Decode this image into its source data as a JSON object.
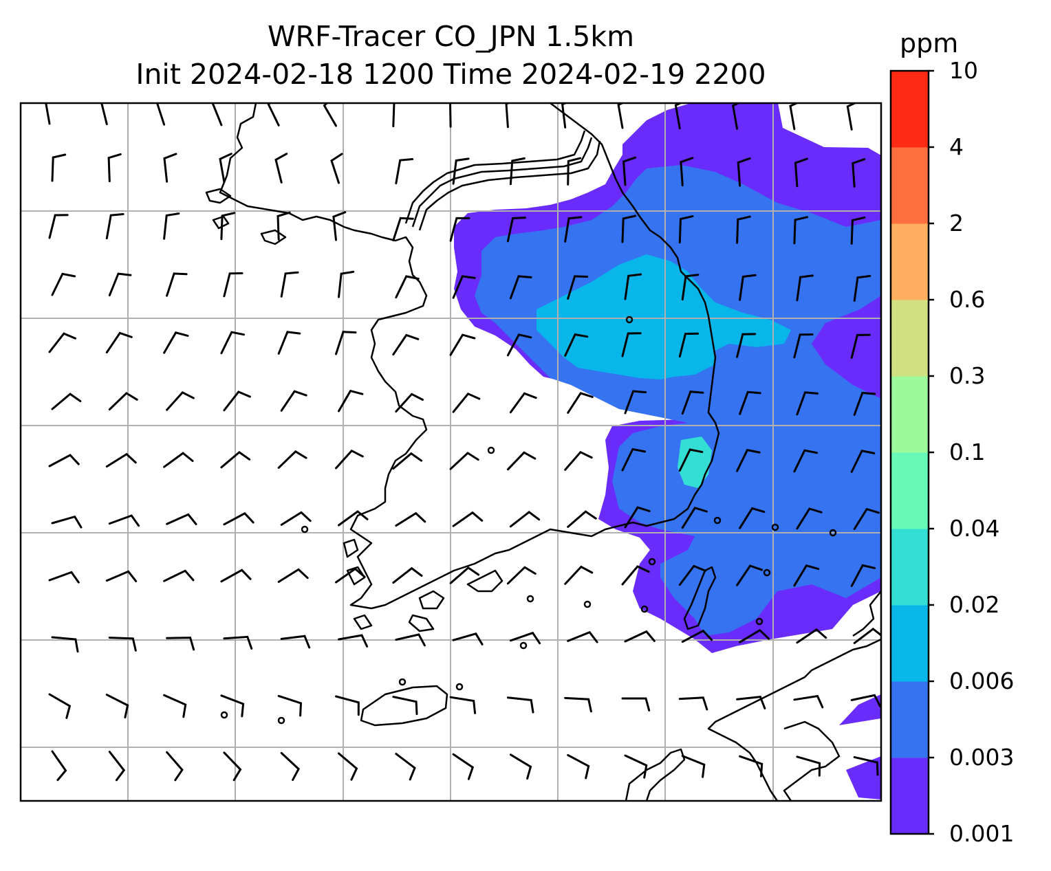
{
  "title": {
    "line1": "WRF-Tracer CO_JPN 1.5km",
    "line2": "Init 2024-02-18 1200 Time 2024-02-19 2200"
  },
  "colorbar": {
    "unit": "ppm",
    "levels": [
      "0.001",
      "0.003",
      "0.006",
      "0.02",
      "0.04",
      "0.1",
      "0.3",
      "0.6",
      "2",
      "4",
      "10"
    ],
    "colors": [
      "#6a2cfb",
      "#3673f0",
      "#08b6ea",
      "#33dfd4",
      "#67fab6",
      "#9cfa9c",
      "#d1e182",
      "#ffaf5f",
      "#ff7040",
      "#ff2a14"
    ]
  },
  "map": {
    "gridlines": true,
    "gridline_color": "#b0b0b0",
    "coastline_color": "#000000",
    "wind_barbs": true,
    "concentration_field": [
      {
        "region": "northeast-sea-and-east-coast",
        "level": "0.001-0.003"
      },
      {
        "region": "east-coast-interior",
        "level": "0.003-0.006"
      },
      {
        "region": "central-plume",
        "level": "0.006-0.02"
      },
      {
        "region": "southeast-strait",
        "level": "0.001-0.006"
      }
    ]
  }
}
